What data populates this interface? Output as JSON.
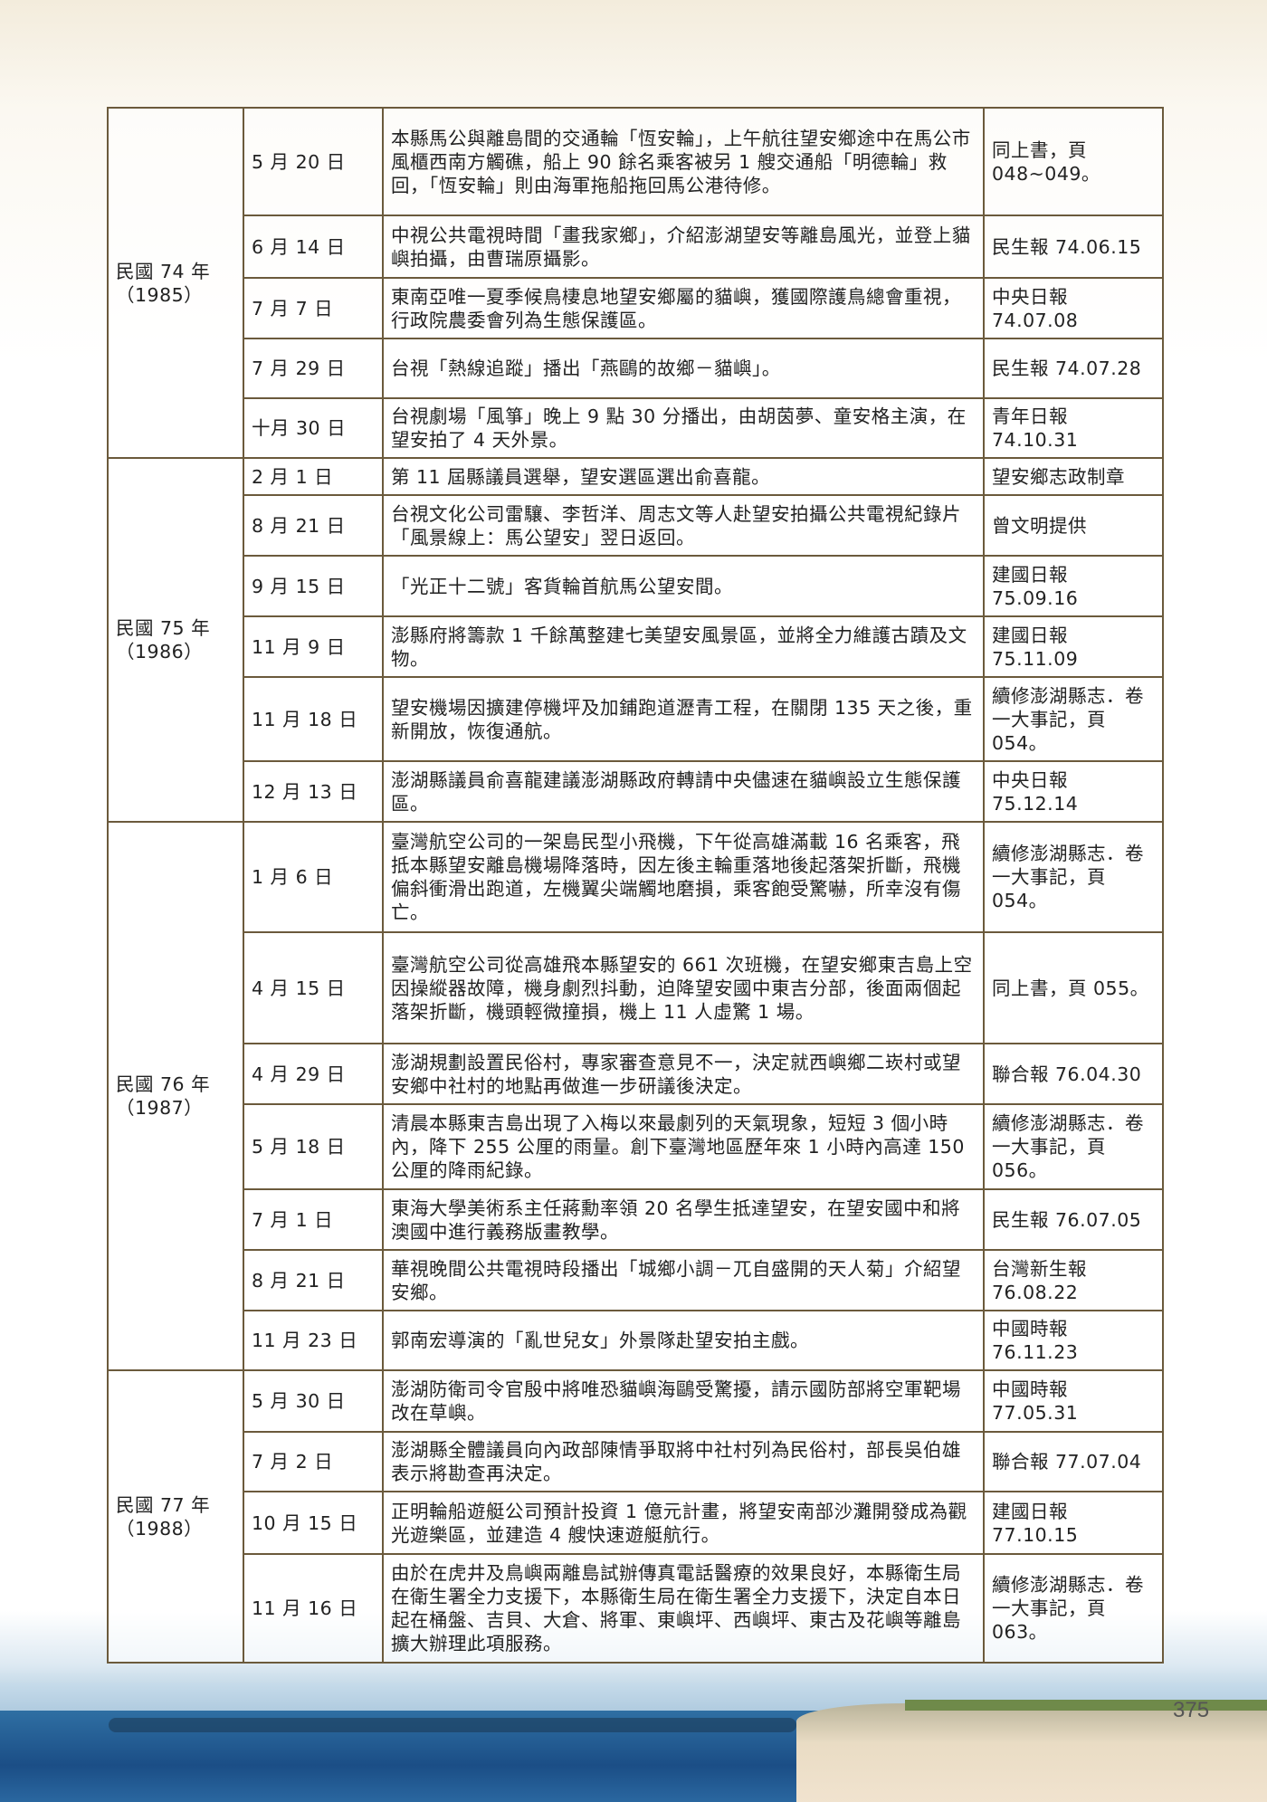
{
  "page_number": "375",
  "groups": [
    {
      "year": "民國 74 年",
      "year_ad": "（1985）",
      "rows": [
        {
          "date": "5 月 20 日",
          "event": "本縣馬公與離島間的交通輪「恆安輪」，上午航往望安鄉途中在馬公市風櫃西南方觸礁，船上 90 餘名乘客被另 1 艘交通船「明德輪」救回，「恆安輪」則由海軍拖船拖回馬公港待修。",
          "source": "同上書，頁 048~049。"
        },
        {
          "date": "6 月 14 日",
          "event": "中視公共電視時間「畫我家鄉」，介紹澎湖望安等離島風光，並登上貓嶼拍攝，由曹瑞原攝影。",
          "source": "民生報 74.06.15"
        },
        {
          "date": "7 月 7 日",
          "event": "東南亞唯一夏季候鳥棲息地望安鄉屬的貓嶼，獲國際護鳥總會重視，行政院農委會列為生態保護區。",
          "source": "中央日報 74.07.08"
        },
        {
          "date": "7 月 29 日",
          "event": "台視「熱線追蹤」播出「燕鷗的故鄉－貓嶼」。",
          "source": "民生報 74.07.28"
        },
        {
          "date": "十月 30 日",
          "event": "台視劇場「風箏」晚上 9 點 30 分播出，由胡茵夢、童安格主演，在望安拍了 4 天外景。",
          "source": "青年日報 74.10.31"
        }
      ]
    },
    {
      "year": "民國 75 年",
      "year_ad": "（1986）",
      "rows": [
        {
          "date": "2 月 1 日",
          "event": "第 11 屆縣議員選舉，望安選區選出俞喜龍。",
          "source": "望安鄉志政制章"
        },
        {
          "date": "8 月 21 日",
          "event": "台視文化公司雷驤、李哲洋、周志文等人赴望安拍攝公共電視紀錄片「風景線上：馬公望安」翌日返回。",
          "source": "曾文明提供"
        },
        {
          "date": "9 月 15 日",
          "event": "「光正十二號」客貨輪首航馬公望安間。",
          "source": "建國日報 75.09.16"
        },
        {
          "date": "11 月 9 日",
          "event": "澎縣府將籌款 1 千餘萬整建七美望安風景區，並將全力維護古蹟及文物。",
          "source": "建國日報 75.11.09"
        },
        {
          "date": "11 月 18 日",
          "event": "望安機場因擴建停機坪及加鋪跑道瀝青工程，在關閉 135 天之後，重新開放，恢復通航。",
          "source": "續修澎湖縣志．卷一大事記，頁 054。"
        },
        {
          "date": "12 月 13 日",
          "event": "澎湖縣議員俞喜龍建議澎湖縣政府轉請中央儘速在貓嶼設立生態保護區。",
          "source": "中央日報 75.12.14"
        }
      ]
    },
    {
      "year": "民國 76 年",
      "year_ad": "（1987）",
      "rows": [
        {
          "date": "1 月 6 日",
          "event": "臺灣航空公司的一架島民型小飛機，下午從高雄滿載 16 名乘客，飛抵本縣望安離島機場降落時，因左後主輪重落地後起落架折斷，飛機偏斜衝滑出跑道，左機翼尖端觸地磨損，乘客飽受驚嚇，所幸沒有傷亡。",
          "source": "續修澎湖縣志．卷一大事記，頁 054。"
        },
        {
          "date": "4 月 15 日",
          "event": "臺灣航空公司從高雄飛本縣望安的 661 次班機，在望安鄉東吉島上空因操縱器故障，機身劇烈抖動，迫降望安國中東吉分部，後面兩個起落架折斷，機頭輕微撞損，機上 11 人虛驚 1 場。",
          "source": "同上書，頁 055。"
        },
        {
          "date": "4 月 29 日",
          "event": "澎湖規劃設置民俗村，專家審查意見不一，決定就西嶼鄉二崁村或望安鄉中社村的地點再做進一步研議後決定。",
          "source": "聯合報 76.04.30"
        },
        {
          "date": "5 月 18 日",
          "event": "清晨本縣東吉島出現了入梅以來最劇列的天氣現象，短短 3 個小時內，降下 255 公厘的雨量。創下臺灣地區歷年來 1 小時內高達 150 公厘的降雨紀錄。",
          "source": "續修澎湖縣志．卷一大事記，頁 056。"
        },
        {
          "date": "7 月 1 日",
          "event": "東海大學美術系主任蔣勳率領 20 名學生抵達望安，在望安國中和將澳國中進行義務版畫教學。",
          "source": "民生報 76.07.05"
        },
        {
          "date": "8 月 21 日",
          "event": "華視晚間公共電視時段播出「城鄉小調－兀自盛開的天人菊」介紹望安鄉。",
          "source": "台灣新生報 76.08.22"
        },
        {
          "date": "11 月 23 日",
          "event": "郭南宏導演的「亂世兒女」外景隊赴望安拍主戲。",
          "source": "中國時報 76.11.23"
        }
      ]
    },
    {
      "year": "民國 77 年",
      "year_ad": "（1988）",
      "rows": [
        {
          "date": "5 月 30 日",
          "event": "澎湖防衛司令官殷中將唯恐貓嶼海鷗受驚擾，請示國防部將空軍靶場改在草嶼。",
          "source": "中國時報 77.05.31"
        },
        {
          "date": "7 月 2 日",
          "event": "澎湖縣全體議員向內政部陳情爭取將中社村列為民俗村，部長吳伯雄表示將勘查再決定。",
          "source": "聯合報 77.07.04"
        },
        {
          "date": "10 月 15 日",
          "event": "正明輪船遊艇公司預計投資 1 億元計畫，將望安南部沙灘開發成為觀光遊樂區，並建造 4 艘快速遊艇航行。",
          "source": "建國日報 77.10.15"
        },
        {
          "date": "11 月 16 日",
          "event": "由於在虎井及鳥嶼兩離島試辦傳真電話醫療的效果良好，本縣衛生局在衛生署全力支援下，本縣衛生局在衛生署全力支援下，決定自本日起在桶盤、吉貝、大倉、將軍、東嶼坪、西嶼坪、東古及花嶼等離島擴大辦理此項服務。",
          "source": "續修澎湖縣志．卷一大事記，頁 063。"
        }
      ]
    }
  ]
}
